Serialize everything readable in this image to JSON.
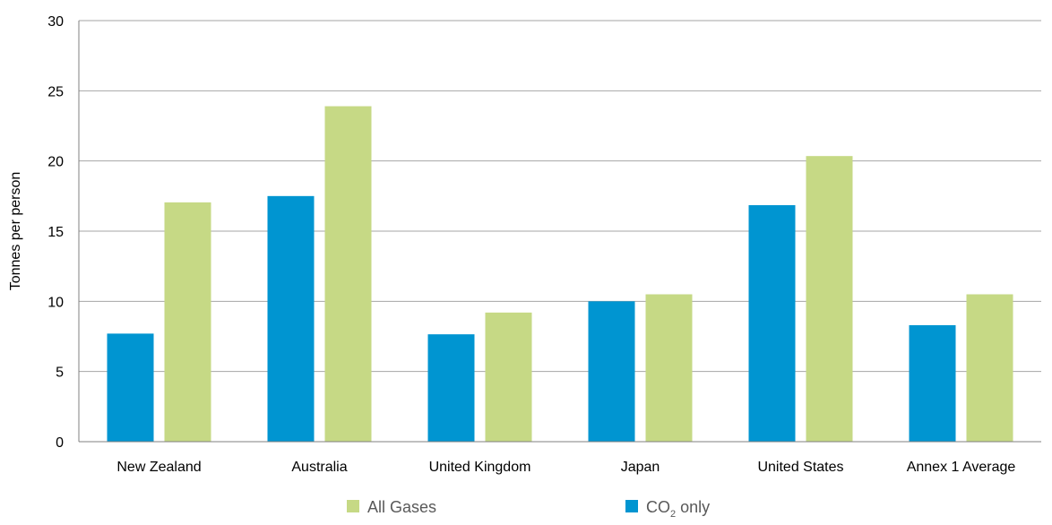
{
  "chart_data": {
    "type": "bar",
    "categories": [
      "New Zealand",
      "Australia",
      "United Kingdom",
      "Japan",
      "United States",
      "Annex 1 Average"
    ],
    "series": [
      {
        "name": "CO2 only",
        "legend_main": "CO",
        "legend_sub": "2",
        "legend_tail": " only",
        "color": "#0095D1",
        "values": [
          7.7,
          17.5,
          7.65,
          10.0,
          16.85,
          8.3
        ]
      },
      {
        "name": "All Gases",
        "color": "#C6D985",
        "values": [
          17.05,
          23.9,
          9.2,
          10.5,
          20.35,
          10.5
        ]
      }
    ],
    "ylabel": "Tonnes per person",
    "ylim": [
      0,
      30
    ],
    "yticks": [
      0,
      5,
      10,
      15,
      20,
      25,
      30
    ],
    "grid": true,
    "legend_position": "bottom"
  }
}
